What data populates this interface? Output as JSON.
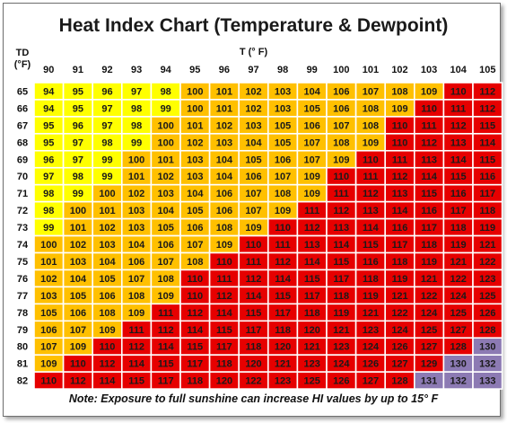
{
  "chart_data": {
    "type": "heatmap",
    "title": "Heat Index Chart (Temperature & Dewpoint)",
    "xlabel": "T (° F)",
    "ylabel": "TD (°F)",
    "x": [
      90,
      91,
      92,
      93,
      94,
      95,
      96,
      97,
      98,
      99,
      100,
      101,
      102,
      103,
      104,
      105
    ],
    "y": [
      65,
      66,
      67,
      68,
      69,
      70,
      71,
      72,
      73,
      74,
      75,
      76,
      77,
      78,
      79,
      80,
      81,
      82
    ],
    "values": [
      [
        94,
        95,
        96,
        97,
        98,
        100,
        101,
        102,
        103,
        104,
        106,
        107,
        108,
        109,
        110,
        112
      ],
      [
        94,
        95,
        97,
        98,
        99,
        100,
        101,
        102,
        103,
        105,
        106,
        108,
        109,
        110,
        111,
        112
      ],
      [
        95,
        96,
        97,
        98,
        100,
        101,
        102,
        103,
        105,
        106,
        107,
        108,
        110,
        111,
        112,
        115
      ],
      [
        95,
        97,
        98,
        99,
        100,
        102,
        103,
        104,
        105,
        107,
        108,
        109,
        110,
        112,
        113,
        114
      ],
      [
        96,
        97,
        99,
        100,
        101,
        103,
        104,
        105,
        106,
        107,
        109,
        110,
        111,
        113,
        114,
        115
      ],
      [
        97,
        98,
        99,
        101,
        102,
        103,
        104,
        106,
        107,
        109,
        110,
        111,
        112,
        114,
        115,
        116
      ],
      [
        98,
        99,
        100,
        102,
        103,
        104,
        106,
        107,
        108,
        109,
        111,
        112,
        113,
        115,
        116,
        117
      ],
      [
        98,
        100,
        101,
        103,
        104,
        105,
        106,
        107,
        109,
        111,
        112,
        113,
        114,
        116,
        117,
        118
      ],
      [
        99,
        101,
        102,
        103,
        105,
        106,
        108,
        109,
        110,
        112,
        113,
        114,
        116,
        117,
        118,
        119
      ],
      [
        100,
        102,
        103,
        104,
        106,
        107,
        109,
        110,
        111,
        113,
        114,
        115,
        117,
        118,
        119,
        121
      ],
      [
        101,
        103,
        104,
        106,
        107,
        108,
        110,
        111,
        112,
        114,
        115,
        116,
        118,
        119,
        121,
        122
      ],
      [
        102,
        104,
        105,
        107,
        108,
        110,
        111,
        112,
        114,
        115,
        117,
        118,
        119,
        121,
        122,
        123
      ],
      [
        103,
        105,
        106,
        108,
        109,
        110,
        112,
        114,
        115,
        117,
        118,
        119,
        121,
        122,
        124,
        125
      ],
      [
        105,
        106,
        108,
        109,
        111,
        112,
        114,
        115,
        117,
        118,
        119,
        121,
        122,
        124,
        125,
        126
      ],
      [
        106,
        107,
        109,
        111,
        112,
        114,
        115,
        117,
        118,
        120,
        121,
        123,
        124,
        125,
        127,
        128
      ],
      [
        107,
        109,
        110,
        112,
        114,
        115,
        117,
        118,
        120,
        121,
        123,
        124,
        126,
        127,
        128,
        130
      ],
      [
        109,
        110,
        112,
        114,
        115,
        117,
        118,
        120,
        121,
        123,
        124,
        126,
        127,
        129,
        130,
        132
      ],
      [
        110,
        112,
        114,
        115,
        117,
        118,
        120,
        122,
        123,
        125,
        126,
        127,
        128,
        131,
        132,
        133
      ]
    ],
    "bands": [
      {
        "max": 99,
        "color": "#ffff00"
      },
      {
        "max": 109,
        "color": "#ffc000"
      },
      {
        "max": 129,
        "color": "#e60000"
      },
      {
        "max": 999,
        "color": "#8c7ab3"
      }
    ],
    "note": "Note: Exposure to full sunshine can increase HI values by up to 15° F"
  }
}
